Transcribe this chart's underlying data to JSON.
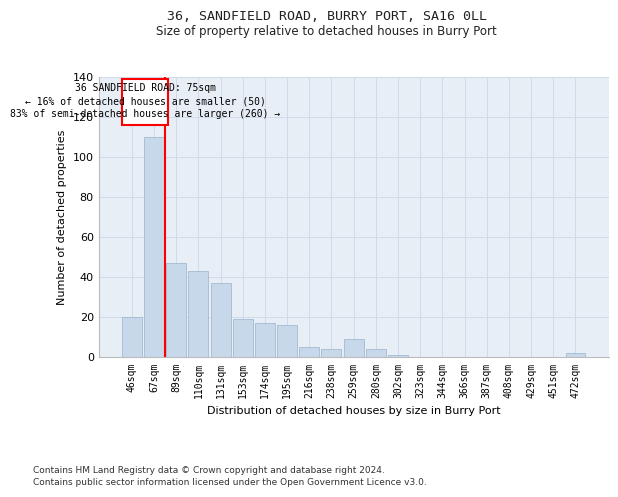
{
  "title": "36, SANDFIELD ROAD, BURRY PORT, SA16 0LL",
  "subtitle": "Size of property relative to detached houses in Burry Port",
  "xlabel": "Distribution of detached houses by size in Burry Port",
  "ylabel": "Number of detached properties",
  "bar_color": "#c8d8eb",
  "bar_edgecolor": "#9ab4cc",
  "categories": [
    "46sqm",
    "67sqm",
    "89sqm",
    "110sqm",
    "131sqm",
    "153sqm",
    "174sqm",
    "195sqm",
    "216sqm",
    "238sqm",
    "259sqm",
    "280sqm",
    "302sqm",
    "323sqm",
    "344sqm",
    "366sqm",
    "387sqm",
    "408sqm",
    "429sqm",
    "451sqm",
    "472sqm"
  ],
  "values": [
    20,
    110,
    47,
    43,
    37,
    19,
    17,
    16,
    5,
    4,
    9,
    4,
    1,
    0,
    0,
    0,
    0,
    0,
    0,
    0,
    2
  ],
  "ylim": [
    0,
    140
  ],
  "yticks": [
    0,
    20,
    40,
    60,
    80,
    100,
    120,
    140
  ],
  "property_line_x": 1.5,
  "property_label": "36 SANDFIELD ROAD: 75sqm",
  "annotation_line1": "← 16% of detached houses are smaller (50)",
  "annotation_line2": "83% of semi-detached houses are larger (260) →",
  "box_color": "red",
  "line_color": "red",
  "footnote1": "Contains HM Land Registry data © Crown copyright and database right 2024.",
  "footnote2": "Contains public sector information licensed under the Open Government Licence v3.0.",
  "grid_color": "#d0daea",
  "background_color": "#e8eef6"
}
